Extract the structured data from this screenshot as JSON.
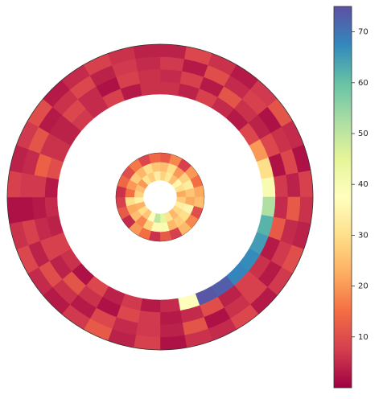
{
  "chart_data": {
    "type": "polar_heatmap",
    "ylim": [
      0,
      75
    ],
    "yticks": [
      10,
      20,
      30,
      40,
      50,
      60,
      70
    ],
    "colormap": [
      "#9e0142",
      "#d53e4f",
      "#f46d43",
      "#fdae61",
      "#fee08b",
      "#ffffbf",
      "#e6f598",
      "#abdda4",
      "#66c2a5",
      "#3288bd",
      "#5e4fa2"
    ],
    "rings": [
      {
        "values": [
          [
            6,
            4,
            8,
            5,
            3,
            9,
            20,
            30,
            40,
            52,
            62,
            65,
            67,
            68,
            73,
            74,
            38,
            5,
            3,
            7,
            4,
            9,
            2,
            6,
            8,
            4,
            5,
            3,
            10,
            6,
            4,
            7,
            5,
            8,
            3,
            6
          ],
          [
            5,
            8,
            3,
            11,
            6,
            4,
            9,
            2,
            7,
            5,
            12,
            3,
            6,
            8,
            4,
            10,
            5,
            3,
            7,
            9,
            2,
            6,
            11,
            4,
            8,
            5,
            3,
            7,
            13,
            6,
            4,
            9,
            5,
            2,
            8,
            6
          ],
          [
            7,
            3,
            10,
            5,
            8,
            2,
            6,
            9,
            4,
            12,
            5,
            7,
            3,
            8,
            6,
            2,
            11,
            4,
            7,
            5,
            9,
            3,
            6,
            10,
            4,
            8,
            2,
            7,
            5,
            11,
            3,
            6,
            9,
            4,
            7,
            5
          ],
          [
            4,
            9,
            6,
            3,
            7,
            11,
            5,
            2,
            8,
            6,
            4,
            10,
            7,
            3,
            9,
            5,
            6,
            2,
            8,
            4,
            12,
            7,
            3,
            5,
            9,
            6,
            2,
            8,
            4,
            7,
            10,
            3,
            5,
            8,
            6,
            4
          ]
        ]
      },
      {
        "values": [
          [
            28,
            32,
            25,
            35,
            30,
            22,
            27,
            33,
            29,
            24,
            31,
            45,
            50,
            38,
            26,
            30,
            23,
            34,
            28,
            25,
            20,
            31,
            27,
            33
          ],
          [
            25,
            30,
            20,
            28,
            33,
            26,
            22,
            35,
            30,
            27,
            24,
            40,
            36,
            28,
            18,
            25,
            22,
            30,
            15,
            20,
            27,
            24,
            30,
            26
          ],
          [
            12,
            18,
            8,
            20,
            15,
            22,
            25,
            10,
            18,
            24,
            8,
            12,
            6,
            15,
            20,
            5,
            12,
            8,
            6,
            14,
            10,
            16,
            9,
            14
          ]
        ]
      }
    ]
  }
}
